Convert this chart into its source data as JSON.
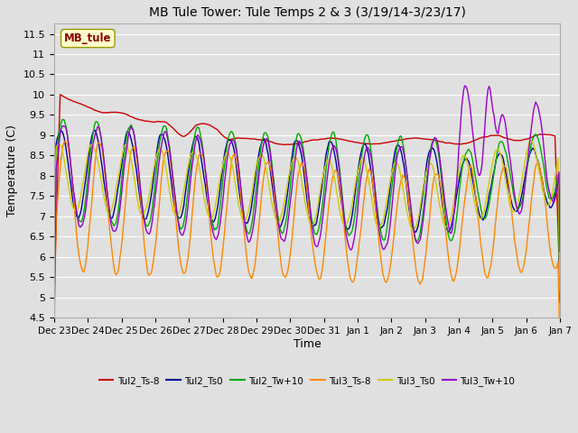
{
  "title": "MB Tule Tower: Tule Temps 2 & 3 (3/19/14-3/23/17)",
  "xlabel": "Time",
  "ylabel": "Temperature (C)",
  "ylim": [
    4.5,
    11.75
  ],
  "yticks": [
    4.5,
    5.0,
    5.5,
    6.0,
    6.5,
    7.0,
    7.5,
    8.0,
    8.5,
    9.0,
    9.5,
    10.0,
    10.5,
    11.0,
    11.5
  ],
  "background_color": "#e0e0e0",
  "plot_bg_color": "#e0e0e0",
  "grid_color": "#ffffff",
  "annotation_text": "MB_tule",
  "annotation_color": "#8b0000",
  "annotation_bg": "#ffffcc",
  "annotation_edge": "#999900",
  "series": [
    {
      "label": "Tul2_Ts-8",
      "color": "#cc0000"
    },
    {
      "label": "Tul2_Ts0",
      "color": "#000099"
    },
    {
      "label": "Tul2_Tw+10",
      "color": "#00aa00"
    },
    {
      "label": "Tul3_Ts-8",
      "color": "#ff8800"
    },
    {
      "label": "Tul3_Ts0",
      "color": "#cccc00"
    },
    {
      "label": "Tul3_Tw+10",
      "color": "#9900cc"
    }
  ],
  "xtick_labels": [
    "Dec 23",
    "Dec 24",
    "Dec 25",
    "Dec 26",
    "Dec 27",
    "Dec 28",
    "Dec 29",
    "Dec 30",
    "Dec 31",
    "Jan 1",
    "Jan 2",
    "Jan 3",
    "Jan 4",
    "Jan 5",
    "Jan 6",
    "Jan 7"
  ],
  "n_points": 500,
  "figsize": [
    6.4,
    4.8
  ],
  "dpi": 100
}
